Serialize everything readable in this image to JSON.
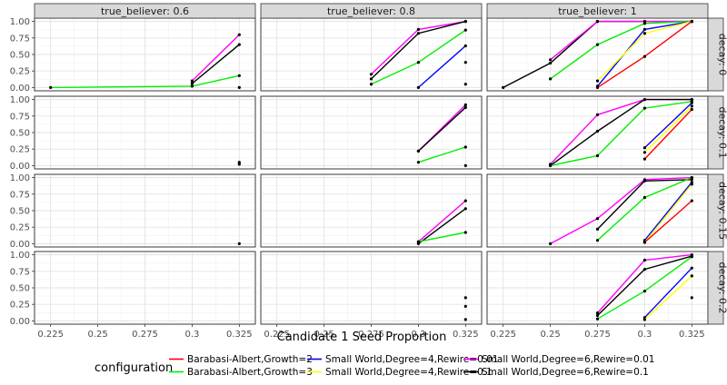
{
  "chart_data": {
    "type": "line",
    "xlabel": "Candidate 1 Seed Proportion",
    "ylabel": "",
    "xlim": [
      0.2165,
      0.3335
    ],
    "ylim": [
      -0.05,
      1.05
    ],
    "x_ticks": [
      "0.225",
      "0.25",
      "0.275",
      "0.3",
      "0.325"
    ],
    "x_tick_values": [
      0.225,
      0.25,
      0.275,
      0.3,
      0.325
    ],
    "y_ticks": [
      "0.00",
      "0.25",
      "0.50",
      "0.75",
      "1.00"
    ],
    "y_tick_values": [
      0,
      0.25,
      0.5,
      0.75,
      1.0
    ],
    "column_facets": [
      "true_believer: 0.6",
      "true_believer: 0.8",
      "true_believer: 1"
    ],
    "row_facets": [
      "decay: 0",
      "decay: 0.1",
      "decay: 0.15",
      "decay: 0.2"
    ],
    "legend": {
      "title": "configuration",
      "position": "bottom",
      "entries": [
        {
          "label": "Barabasi-Albert,Growth=2",
          "color": "#ff0000"
        },
        {
          "label": "Barabasi-Albert,Growth=3",
          "color": "#00ee00"
        },
        {
          "label": "Small World,Degree=4,Rewire=0.01",
          "color": "#0000ff"
        },
        {
          "label": "Small World,Degree=4,Rewire=0.1",
          "color": "#ffff00"
        },
        {
          "label": "Small World,Degree=6,Rewire=0.01",
          "color": "#ff00ff"
        },
        {
          "label": "Small World,Degree=6,Rewire=0.1",
          "color": "#000000"
        }
      ]
    },
    "series_colors": {
      "BA2": "#ff0000",
      "BA3": "#00ee00",
      "SW401": "#0000ff",
      "SW41": "#ffff00",
      "SW601": "#ff00ff",
      "SW61": "#000000"
    },
    "panels": [
      {
        "col": 0,
        "row": 0,
        "series": [
          {
            "key": "BA3",
            "points": [
              [
                0.225,
                0.0
              ],
              [
                0.3,
                0.02
              ],
              [
                0.325,
                0.18
              ]
            ]
          },
          {
            "key": "SW601",
            "points": [
              [
                0.3,
                0.1
              ],
              [
                0.325,
                0.8
              ]
            ]
          },
          {
            "key": "SW61",
            "points": [
              [
                0.3,
                0.06
              ],
              [
                0.325,
                0.65
              ]
            ]
          },
          {
            "key": "SW401",
            "points": [
              [
                0.325,
                0.0
              ]
            ]
          }
        ]
      },
      {
        "col": 1,
        "row": 0,
        "series": [
          {
            "key": "SW601",
            "points": [
              [
                0.275,
                0.2
              ],
              [
                0.3,
                0.88
              ],
              [
                0.325,
                1.0
              ]
            ]
          },
          {
            "key": "SW61",
            "points": [
              [
                0.275,
                0.13
              ],
              [
                0.3,
                0.82
              ],
              [
                0.325,
                1.0
              ]
            ]
          },
          {
            "key": "BA3",
            "points": [
              [
                0.275,
                0.05
              ],
              [
                0.3,
                0.38
              ],
              [
                0.325,
                0.87
              ]
            ]
          },
          {
            "key": "SW401",
            "points": [
              [
                0.3,
                0.0
              ],
              [
                0.325,
                0.63
              ]
            ]
          },
          {
            "key": "BA2",
            "points": [
              [
                0.325,
                0.38
              ]
            ]
          },
          {
            "key": "SW41",
            "points": [
              [
                0.325,
                0.05
              ]
            ]
          }
        ]
      },
      {
        "col": 2,
        "row": 0,
        "series": [
          {
            "key": "SW61",
            "points": [
              [
                0.225,
                0.0
              ],
              [
                0.25,
                0.37
              ],
              [
                0.275,
                1.0
              ],
              [
                0.3,
                1.0
              ],
              [
                0.325,
                1.0
              ]
            ]
          },
          {
            "key": "SW601",
            "points": [
              [
                0.25,
                0.42
              ],
              [
                0.275,
                1.0
              ],
              [
                0.3,
                1.0
              ],
              [
                0.325,
                1.0
              ]
            ]
          },
          {
            "key": "BA3",
            "points": [
              [
                0.25,
                0.13
              ],
              [
                0.275,
                0.65
              ],
              [
                0.3,
                0.97
              ],
              [
                0.325,
                1.0
              ]
            ]
          },
          {
            "key": "SW401",
            "points": [
              [
                0.275,
                0.02
              ],
              [
                0.3,
                0.88
              ],
              [
                0.325,
                1.0
              ]
            ]
          },
          {
            "key": "SW41",
            "points": [
              [
                0.275,
                0.1
              ],
              [
                0.3,
                0.82
              ],
              [
                0.325,
                1.0
              ]
            ]
          },
          {
            "key": "BA2",
            "points": [
              [
                0.275,
                0.0
              ],
              [
                0.3,
                0.47
              ],
              [
                0.325,
                1.0
              ]
            ]
          }
        ]
      },
      {
        "col": 0,
        "row": 1,
        "series": [
          {
            "key": "SW61",
            "points": [
              [
                0.325,
                0.02
              ]
            ]
          },
          {
            "key": "BA3",
            "points": [
              [
                0.325,
                0.05
              ]
            ]
          }
        ]
      },
      {
        "col": 1,
        "row": 1,
        "series": [
          {
            "key": "SW601",
            "points": [
              [
                0.3,
                0.22
              ],
              [
                0.325,
                0.92
              ]
            ]
          },
          {
            "key": "SW61",
            "points": [
              [
                0.3,
                0.22
              ],
              [
                0.325,
                0.88
              ]
            ]
          },
          {
            "key": "BA3",
            "points": [
              [
                0.3,
                0.05
              ],
              [
                0.325,
                0.28
              ]
            ]
          },
          {
            "key": "BA2",
            "points": [
              [
                0.325,
                0.0
              ]
            ]
          }
        ]
      },
      {
        "col": 2,
        "row": 1,
        "series": [
          {
            "key": "SW601",
            "points": [
              [
                0.25,
                0.02
              ],
              [
                0.275,
                0.77
              ],
              [
                0.3,
                1.0
              ],
              [
                0.325,
                1.0
              ]
            ]
          },
          {
            "key": "SW61",
            "points": [
              [
                0.25,
                0.0
              ],
              [
                0.275,
                0.52
              ],
              [
                0.3,
                1.0
              ],
              [
                0.325,
                1.0
              ]
            ]
          },
          {
            "key": "BA3",
            "points": [
              [
                0.25,
                0.0
              ],
              [
                0.275,
                0.15
              ],
              [
                0.3,
                0.87
              ],
              [
                0.325,
                0.97
              ]
            ]
          },
          {
            "key": "SW401",
            "points": [
              [
                0.3,
                0.27
              ],
              [
                0.325,
                0.95
              ]
            ]
          },
          {
            "key": "SW41",
            "points": [
              [
                0.3,
                0.2
              ],
              [
                0.325,
                0.9
              ]
            ]
          },
          {
            "key": "BA2",
            "points": [
              [
                0.3,
                0.1
              ],
              [
                0.325,
                0.85
              ]
            ]
          }
        ]
      },
      {
        "col": 0,
        "row": 2,
        "series": [
          {
            "key": "SW61",
            "points": [
              [
                0.325,
                0.0
              ]
            ]
          }
        ]
      },
      {
        "col": 1,
        "row": 2,
        "series": [
          {
            "key": "SW601",
            "points": [
              [
                0.3,
                0.03
              ],
              [
                0.325,
                0.65
              ]
            ]
          },
          {
            "key": "SW61",
            "points": [
              [
                0.3,
                0.0
              ],
              [
                0.325,
                0.53
              ]
            ]
          },
          {
            "key": "BA3",
            "points": [
              [
                0.3,
                0.03
              ],
              [
                0.325,
                0.17
              ]
            ]
          }
        ]
      },
      {
        "col": 2,
        "row": 2,
        "series": [
          {
            "key": "SW601",
            "points": [
              [
                0.25,
                0.0
              ],
              [
                0.275,
                0.38
              ],
              [
                0.3,
                0.97
              ],
              [
                0.325,
                1.0
              ]
            ]
          },
          {
            "key": "SW61",
            "points": [
              [
                0.275,
                0.22
              ],
              [
                0.3,
                0.95
              ],
              [
                0.325,
                0.97
              ]
            ]
          },
          {
            "key": "BA3",
            "points": [
              [
                0.275,
                0.05
              ],
              [
                0.3,
                0.7
              ],
              [
                0.325,
                1.0
              ]
            ]
          },
          {
            "key": "SW401",
            "points": [
              [
                0.3,
                0.05
              ],
              [
                0.325,
                0.93
              ]
            ]
          },
          {
            "key": "SW41",
            "points": [
              [
                0.3,
                0.02
              ],
              [
                0.325,
                0.9
              ]
            ]
          },
          {
            "key": "BA2",
            "points": [
              [
                0.3,
                0.02
              ],
              [
                0.325,
                0.65
              ]
            ]
          }
        ]
      },
      {
        "col": 0,
        "row": 3,
        "series": []
      },
      {
        "col": 1,
        "row": 3,
        "series": [
          {
            "key": "SW61",
            "points": [
              [
                0.325,
                0.35
              ]
            ]
          },
          {
            "key": "SW601",
            "points": [
              [
                0.325,
                0.22
              ]
            ]
          },
          {
            "key": "BA3",
            "points": [
              [
                0.325,
                0.02
              ]
            ]
          }
        ]
      },
      {
        "col": 2,
        "row": 3,
        "series": [
          {
            "key": "SW601",
            "points": [
              [
                0.275,
                0.12
              ],
              [
                0.3,
                0.92
              ],
              [
                0.325,
                1.0
              ]
            ]
          },
          {
            "key": "SW61",
            "points": [
              [
                0.275,
                0.08
              ],
              [
                0.3,
                0.78
              ],
              [
                0.325,
                0.98
              ]
            ]
          },
          {
            "key": "BA3",
            "points": [
              [
                0.275,
                0.03
              ],
              [
                0.3,
                0.45
              ],
              [
                0.325,
                0.97
              ]
            ]
          },
          {
            "key": "SW401",
            "points": [
              [
                0.3,
                0.05
              ],
              [
                0.325,
                0.8
              ]
            ]
          },
          {
            "key": "SW41",
            "points": [
              [
                0.3,
                0.02
              ],
              [
                0.325,
                0.68
              ]
            ]
          },
          {
            "key": "BA2",
            "points": [
              [
                0.325,
                0.35
              ]
            ]
          }
        ]
      }
    ]
  }
}
